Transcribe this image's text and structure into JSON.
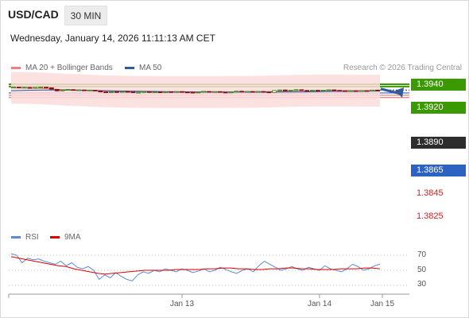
{
  "header": {
    "symbol": "USD/CAD",
    "timeframe": "30 MIN",
    "datetime": "Wednesday, January 14, 2026 11:11:13 AM CET"
  },
  "legend": {
    "ma20_label": "MA 20 + Bollinger Bands",
    "ma50_label": "MA 50",
    "credit": "Research © 2026 Trading Central",
    "rsi_label": "RSI",
    "ma9_label": "9MA"
  },
  "colors": {
    "green_level": "#3a9a00",
    "blue_level": "#2c62c2",
    "red_level": "#e26060",
    "ma20": "#f08080",
    "ma50": "#2f5b9c",
    "bollinger_fill": "#fbdcdc",
    "candle_up": "#2a7a00",
    "candle_down": "#8b1010",
    "rsi": "#5b8ad6",
    "rsi_ma": "#dd0000",
    "arrow": "#2f5b9c"
  },
  "chart_data": {
    "type": "candlestick",
    "x_ticks": [
      "Jan 13",
      "Jan 14",
      "Jan 15"
    ],
    "y_range": [
      1.38,
      1.395
    ],
    "levels": [
      {
        "value": "1.3940",
        "kind": "resistance"
      },
      {
        "value": "1.3920",
        "kind": "resistance"
      },
      {
        "value": "1.3890",
        "kind": "last"
      },
      {
        "value": "1.3865",
        "kind": "support"
      },
      {
        "value": "1.3845",
        "kind": "support"
      },
      {
        "value": "1.3825",
        "kind": "support"
      }
    ],
    "candles_approx": [
      [
        1.3912,
        1.3915
      ],
      [
        1.3915,
        1.391
      ],
      [
        1.3908,
        1.3914
      ],
      [
        1.3913,
        1.3905
      ],
      [
        1.3906,
        1.3913
      ],
      [
        1.3913,
        1.3916
      ],
      [
        1.3915,
        1.391
      ],
      [
        1.391,
        1.3897
      ],
      [
        1.3896,
        1.3883
      ],
      [
        1.3884,
        1.389
      ],
      [
        1.3889,
        1.3895
      ],
      [
        1.3894,
        1.3889
      ],
      [
        1.389,
        1.3892
      ],
      [
        1.3891,
        1.3884
      ],
      [
        1.3886,
        1.389
      ],
      [
        1.3889,
        1.3883
      ],
      [
        1.3884,
        1.3874
      ],
      [
        1.3874,
        1.3868
      ],
      [
        1.3869,
        1.3875
      ],
      [
        1.3876,
        1.3872
      ],
      [
        1.3872,
        1.3878
      ],
      [
        1.3878,
        1.3874
      ],
      [
        1.3874,
        1.3868
      ],
      [
        1.3868,
        1.3871
      ],
      [
        1.3872,
        1.3877
      ],
      [
        1.3876,
        1.3871
      ],
      [
        1.3871,
        1.3874
      ],
      [
        1.3874,
        1.3868
      ],
      [
        1.3869,
        1.3875
      ],
      [
        1.3876,
        1.3873
      ],
      [
        1.3873,
        1.3877
      ],
      [
        1.3877,
        1.3873
      ],
      [
        1.3873,
        1.387
      ],
      [
        1.3871,
        1.3868
      ],
      [
        1.3867,
        1.3872
      ],
      [
        1.3872,
        1.3879
      ],
      [
        1.3878,
        1.3874
      ],
      [
        1.3874,
        1.3877
      ],
      [
        1.3877,
        1.3872
      ],
      [
        1.3872,
        1.3869
      ],
      [
        1.3868,
        1.3873
      ],
      [
        1.3873,
        1.388
      ],
      [
        1.388,
        1.3875
      ],
      [
        1.3875,
        1.3878
      ],
      [
        1.3878,
        1.3874
      ],
      [
        1.3874,
        1.3878
      ],
      [
        1.3878,
        1.3873
      ],
      [
        1.3874,
        1.3867
      ],
      [
        1.387,
        1.3886
      ],
      [
        1.3886,
        1.3891
      ],
      [
        1.3891,
        1.3882
      ],
      [
        1.3882,
        1.3889
      ],
      [
        1.3889,
        1.3893
      ],
      [
        1.3893,
        1.3886
      ],
      [
        1.3887,
        1.3883
      ],
      [
        1.3883,
        1.3888
      ],
      [
        1.3888,
        1.3885
      ],
      [
        1.3885,
        1.3889
      ],
      [
        1.3889,
        1.3892
      ],
      [
        1.3892,
        1.3887
      ],
      [
        1.3887,
        1.3884
      ],
      [
        1.3884,
        1.3881
      ],
      [
        1.3881,
        1.3884
      ],
      [
        1.3884,
        1.3882
      ],
      [
        1.3882,
        1.3885
      ],
      [
        1.3885,
        1.3882
      ],
      [
        1.3882,
        1.389
      ],
      [
        1.389,
        1.3887
      ]
    ],
    "ma20_approx": [
      1.391,
      1.3908,
      1.3903,
      1.3896,
      1.389,
      1.3884,
      1.3879,
      1.3876,
      1.3874,
      1.3873,
      1.3873,
      1.3873,
      1.3873,
      1.3873,
      1.3874,
      1.3875,
      1.3877,
      1.3881,
      1.3884,
      1.3886,
      1.3887,
      1.3886,
      1.3885,
      1.3885
    ],
    "ma50_approx": [
      1.3884,
      1.3888,
      1.389,
      1.389,
      1.3889,
      1.3887,
      1.3884,
      1.3882,
      1.388,
      1.3878,
      1.3876,
      1.3875,
      1.3874,
      1.3874,
      1.3873,
      1.3873,
      1.3873,
      1.3873,
      1.3874,
      1.3876,
      1.3878,
      1.388,
      1.3881,
      1.3882
    ],
    "forecast_target": 1.394,
    "rsi": {
      "ticks": [
        "70",
        "50",
        "30"
      ],
      "ylim": [
        0,
        100
      ],
      "values_approx": [
        72,
        70,
        60,
        66,
        64,
        65,
        62,
        60,
        58,
        62,
        56,
        60,
        54,
        52,
        55,
        50,
        38,
        44,
        40,
        47,
        42,
        38,
        36,
        44,
        48,
        46,
        50,
        48,
        52,
        50,
        48,
        52,
        50,
        47,
        49,
        52,
        48,
        50,
        54,
        51,
        48,
        46,
        50,
        52,
        48,
        56,
        62,
        58,
        54,
        50,
        52,
        55,
        52,
        50,
        54,
        52,
        50,
        56,
        52,
        50,
        48,
        52,
        58,
        55,
        50,
        52,
        56,
        58
      ],
      "ma9_approx": [
        68,
        66,
        64,
        62,
        60,
        58,
        56,
        55,
        52,
        50,
        48,
        46,
        45,
        46,
        47,
        48,
        49,
        50,
        50,
        50,
        50,
        51,
        51,
        51,
        51,
        52,
        52,
        53,
        53,
        52,
        52,
        51,
        51,
        52,
        52,
        53,
        53,
        52,
        52,
        51,
        51,
        51,
        52,
        52,
        52,
        53,
        53,
        52
      ]
    }
  }
}
